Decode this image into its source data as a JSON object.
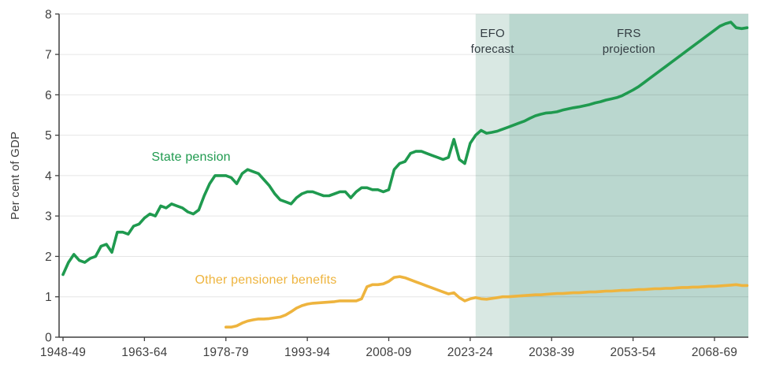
{
  "page": {
    "background": "#ffffff"
  },
  "chart_data": {
    "type": "line",
    "title": "",
    "ylabel": "Per cent of GDP",
    "ylim": [
      0,
      8
    ],
    "y_ticks": [
      0,
      1,
      2,
      3,
      4,
      5,
      6,
      7,
      8
    ],
    "x_tick_labels": [
      "1948-49",
      "1963-64",
      "1978-79",
      "1993-94",
      "2008-09",
      "2023-24",
      "2038-39",
      "2053-54",
      "2068-69"
    ],
    "x_tick_years": [
      1948,
      1963,
      1978,
      1993,
      2008,
      2023,
      2038,
      2053,
      2068
    ],
    "x_range_years": [
      1948,
      2074.5
    ],
    "grid": "horizontal",
    "grid_color": "rgba(0,0,0,0.10)",
    "axis_color": "#3f3f3f",
    "annotation_color": "#333c42",
    "bands": [
      {
        "label_lines": [
          "EFO",
          "forecast"
        ],
        "from_year": 2024.0,
        "to_year": 2030.2,
        "color": "#d9e8e3"
      },
      {
        "label_lines": [
          "FRS",
          "projection"
        ],
        "from_year": 2030.2,
        "to_year": 2074.5,
        "color": "#bad7cf"
      }
    ],
    "series": [
      {
        "name": "State pension",
        "color": "#1f9a4f",
        "start_year": 1948,
        "values": [
          1.55,
          1.85,
          2.05,
          1.9,
          1.85,
          1.95,
          2.0,
          2.25,
          2.3,
          2.1,
          2.6,
          2.6,
          2.55,
          2.75,
          2.8,
          2.95,
          3.05,
          3.0,
          3.25,
          3.2,
          3.3,
          3.25,
          3.2,
          3.1,
          3.05,
          3.15,
          3.5,
          3.8,
          4.0,
          4.0,
          4.0,
          3.95,
          3.8,
          4.05,
          4.15,
          4.1,
          4.05,
          3.9,
          3.75,
          3.55,
          3.4,
          3.35,
          3.3,
          3.45,
          3.55,
          3.6,
          3.6,
          3.55,
          3.5,
          3.5,
          3.55,
          3.6,
          3.6,
          3.45,
          3.6,
          3.7,
          3.7,
          3.65,
          3.65,
          3.6,
          3.65,
          4.15,
          4.3,
          4.35,
          4.55,
          4.6,
          4.6,
          4.55,
          4.5,
          4.45,
          4.4,
          4.45,
          4.9,
          4.4,
          4.3,
          4.8,
          5.0,
          5.12,
          5.05,
          5.07,
          5.1,
          5.15,
          5.2,
          5.25,
          5.3,
          5.35,
          5.42,
          5.48,
          5.52,
          5.55,
          5.56,
          5.58,
          5.62,
          5.65,
          5.68,
          5.7,
          5.73,
          5.76,
          5.8,
          5.83,
          5.87,
          5.9,
          5.93,
          5.98,
          6.05,
          6.12,
          6.2,
          6.3,
          6.4,
          6.5,
          6.6,
          6.7,
          6.8,
          6.9,
          7.0,
          7.1,
          7.2,
          7.3,
          7.4,
          7.5,
          7.6,
          7.7,
          7.76,
          7.8,
          7.66,
          7.64,
          7.66
        ]
      },
      {
        "name": "Other pensioner benefits",
        "color": "#eeb43e",
        "start_year": 1978,
        "values": [
          0.25,
          0.25,
          0.28,
          0.35,
          0.4,
          0.43,
          0.45,
          0.45,
          0.46,
          0.48,
          0.5,
          0.55,
          0.63,
          0.72,
          0.78,
          0.82,
          0.84,
          0.85,
          0.86,
          0.87,
          0.88,
          0.9,
          0.9,
          0.9,
          0.9,
          0.95,
          1.25,
          1.3,
          1.3,
          1.32,
          1.38,
          1.48,
          1.5,
          1.47,
          1.42,
          1.37,
          1.32,
          1.27,
          1.22,
          1.17,
          1.12,
          1.07,
          1.1,
          0.98,
          0.9,
          0.95,
          0.98,
          0.95,
          0.94,
          0.96,
          0.98,
          1.0,
          1.0,
          1.01,
          1.02,
          1.03,
          1.04,
          1.05,
          1.05,
          1.06,
          1.07,
          1.08,
          1.08,
          1.09,
          1.1,
          1.1,
          1.11,
          1.12,
          1.12,
          1.13,
          1.14,
          1.14,
          1.15,
          1.16,
          1.16,
          1.17,
          1.18,
          1.18,
          1.19,
          1.2,
          1.2,
          1.21,
          1.21,
          1.22,
          1.23,
          1.23,
          1.24,
          1.24,
          1.25,
          1.26,
          1.26,
          1.27,
          1.28,
          1.29,
          1.3,
          1.28,
          1.28
        ]
      }
    ],
    "series_labels": [
      {
        "text": "State pension",
        "color": "#1f9a4f",
        "x_year": 1964.3,
        "y_value": 4.37
      },
      {
        "text": "Other pensioner benefits",
        "color": "#eeb43e",
        "x_year": 1972.3,
        "y_value": 1.33
      }
    ]
  }
}
